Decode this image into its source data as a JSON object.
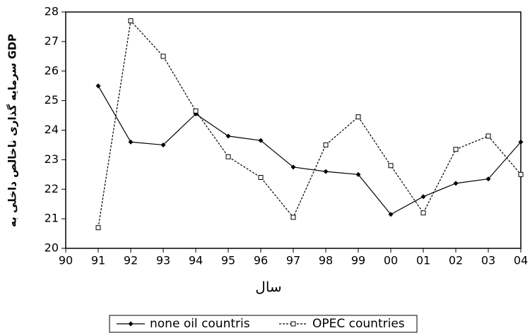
{
  "chart_data": {
    "type": "line",
    "y_label": "سرمایه گذاری ناخالص داخلی به GDP",
    "x_label": "سال",
    "categories": [
      "90",
      "91",
      "92",
      "93",
      "94",
      "95",
      "96",
      "97",
      "98",
      "99",
      "00",
      "01",
      "02",
      "03",
      "04"
    ],
    "series": [
      {
        "name": "none oil countris",
        "color": "#000000",
        "values": [
          null,
          25.5,
          23.6,
          23.5,
          24.55,
          23.8,
          23.65,
          22.75,
          22.6,
          22.5,
          21.15,
          21.75,
          22.2,
          22.35,
          23.6
        ]
      },
      {
        "name": "OPEC countries",
        "color": "#000000",
        "values": [
          null,
          20.7,
          27.7,
          26.5,
          24.65,
          23.1,
          22.4,
          21.05,
          23.5,
          24.45,
          22.8,
          21.2,
          23.35,
          23.8,
          22.5
        ]
      }
    ],
    "ylim": [
      20,
      28
    ],
    "yticks": [
      20,
      21,
      22,
      23,
      24,
      25,
      26,
      27,
      28
    ]
  }
}
